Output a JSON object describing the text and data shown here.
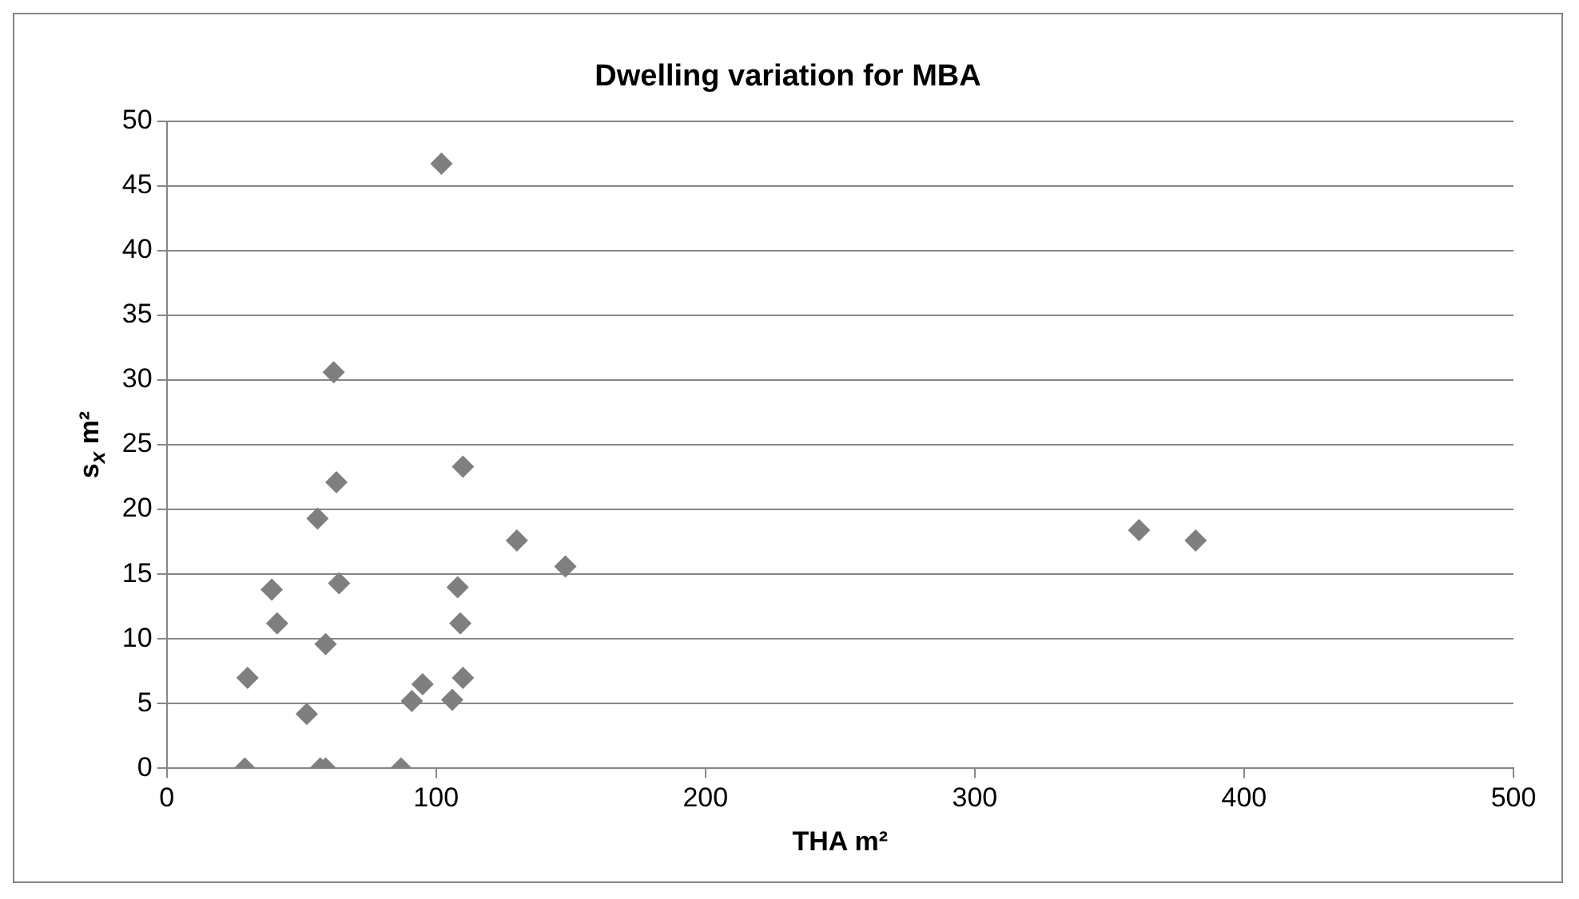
{
  "chart_data": {
    "type": "scatter",
    "title": "Dwelling variation for MBA",
    "xlabel": "THA m²",
    "ylabel": "s$_{x}$ m²",
    "x": [
      29,
      30,
      39,
      41,
      52,
      56,
      57,
      59,
      59,
      62,
      63,
      64,
      87,
      91,
      95,
      102,
      106,
      108,
      109,
      110,
      110,
      130,
      148,
      361,
      382
    ],
    "series": [
      {
        "color": "#7f7f7f",
        "values": [
          0,
          7,
          13.8,
          11.2,
          4.2,
          19.3,
          0,
          0,
          9.6,
          30.6,
          22.1,
          14.3,
          0,
          5.2,
          6.5,
          46.7,
          5.3,
          14,
          11.2,
          23.3,
          7,
          17.6,
          15.6,
          18.4,
          17.6
        ]
      }
    ],
    "xlim": [
      0,
      500
    ],
    "xticks": [
      0,
      100,
      200,
      300,
      400,
      500
    ],
    "ylim": [
      0,
      50
    ],
    "yticks": [
      0,
      5,
      10,
      15,
      20,
      25,
      30,
      35,
      40,
      45,
      50
    ],
    "grid": "y",
    "legend": false,
    "marker": "diamond"
  }
}
